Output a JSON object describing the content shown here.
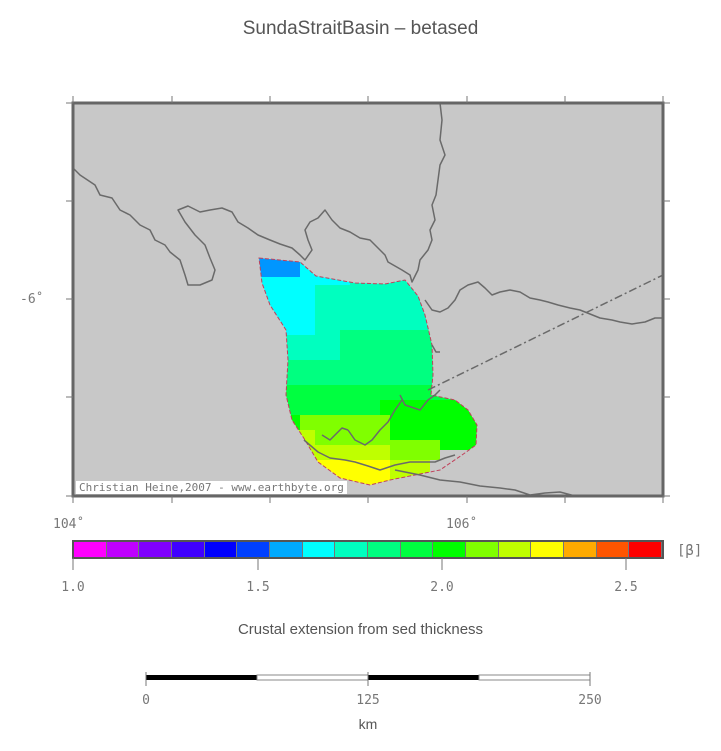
{
  "title": "SundaStraitBasin – betased",
  "map": {
    "land_color": "#c8c8c8",
    "coast_color": "#6a6a6a",
    "lat_labels": [
      "-6˚"
    ],
    "lon_labels": [
      "104˚",
      "106˚"
    ],
    "credit": "Christian Heine,2007 - www.earthbyte.org",
    "basin_grid_colors": [
      "#0096ff",
      "#00ffff",
      "#00ffbf",
      "#00ff80",
      "#00ff40",
      "#00ff00",
      "#80ff00",
      "#bfff00",
      "#ffff00"
    ]
  },
  "colorbar": {
    "colors": [
      "#ff00ff",
      "#bf00ff",
      "#8000ff",
      "#4000ff",
      "#0000ff",
      "#0040ff",
      "#00aaff",
      "#00ffff",
      "#00ffbf",
      "#00ff80",
      "#00ff40",
      "#00ff00",
      "#80ff00",
      "#bfff00",
      "#ffff00",
      "#ffaa00",
      "#ff5500",
      "#ff0000"
    ],
    "labels": [
      "1.0",
      "1.5",
      "2.0",
      "2.5"
    ],
    "unit": "[β]",
    "title": "Crustal extension from sed thickness"
  },
  "scalebar": {
    "labels": [
      "0",
      "125",
      "250"
    ],
    "unit": "km"
  }
}
